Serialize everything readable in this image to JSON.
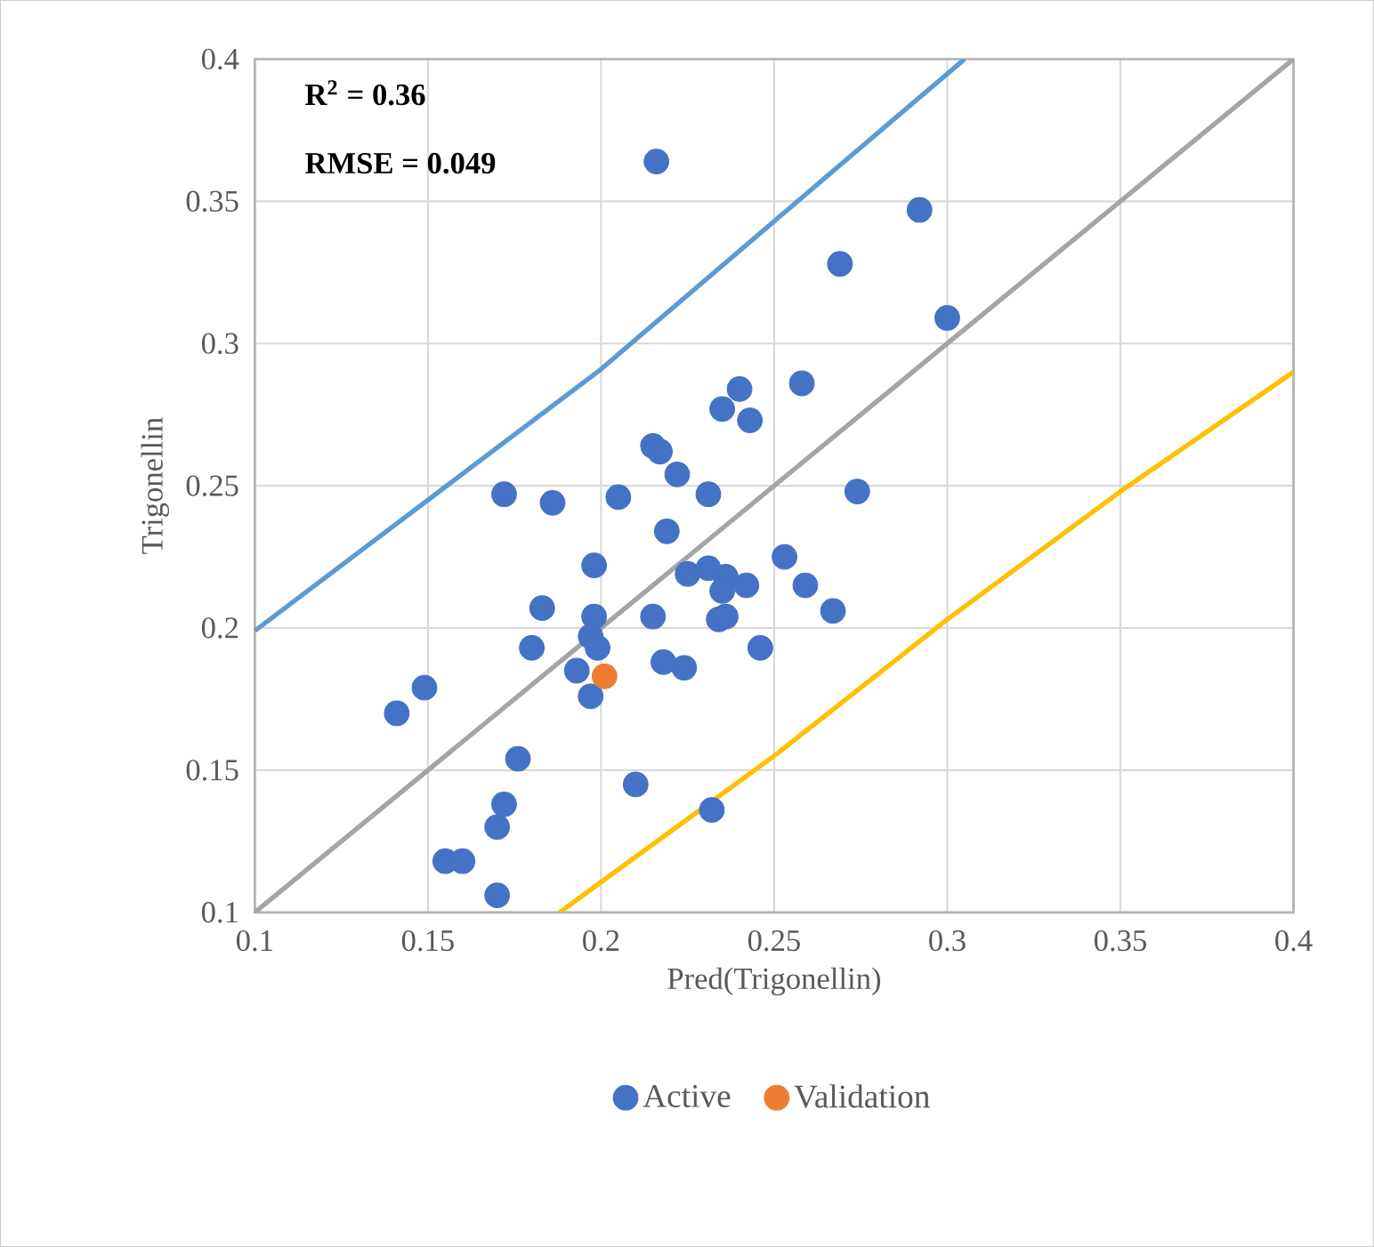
{
  "chart_data": {
    "type": "scatter",
    "xlabel": "Pred(Trigonellin)",
    "ylabel": "Trigonellin",
    "xlim": [
      0.1,
      0.4
    ],
    "ylim": [
      0.1,
      0.4
    ],
    "xticks": [
      0.1,
      0.15,
      0.2,
      0.25,
      0.3,
      0.35,
      0.4
    ],
    "yticks": [
      0.1,
      0.15,
      0.2,
      0.25,
      0.3,
      0.35,
      0.4
    ],
    "grid": true,
    "legend": "bottom",
    "annotations": [
      "R$^{2}$ = 0.36",
      "RMSE = 0.049"
    ],
    "series": [
      {
        "name": "Active",
        "marker": "circle",
        "color": "#4472c4",
        "x": [
          0.216,
          0.292,
          0.269,
          0.3,
          0.258,
          0.24,
          0.235,
          0.243,
          0.215,
          0.217,
          0.222,
          0.172,
          0.186,
          0.205,
          0.231,
          0.274,
          0.219,
          0.198,
          0.253,
          0.225,
          0.231,
          0.236,
          0.242,
          0.259,
          0.235,
          0.183,
          0.215,
          0.198,
          0.234,
          0.236,
          0.267,
          0.197,
          0.199,
          0.18,
          0.246,
          0.193,
          0.218,
          0.224,
          0.197,
          0.149,
          0.141,
          0.176,
          0.21,
          0.172,
          0.232,
          0.17,
          0.155,
          0.16,
          0.17
        ],
        "values": [
          0.364,
          0.347,
          0.328,
          0.309,
          0.286,
          0.284,
          0.277,
          0.273,
          0.264,
          0.262,
          0.254,
          0.247,
          0.244,
          0.246,
          0.247,
          0.248,
          0.234,
          0.222,
          0.225,
          0.219,
          0.221,
          0.218,
          0.215,
          0.215,
          0.213,
          0.207,
          0.204,
          0.204,
          0.203,
          0.204,
          0.206,
          0.197,
          0.193,
          0.193,
          0.193,
          0.185,
          0.188,
          0.186,
          0.176,
          0.179,
          0.17,
          0.154,
          0.145,
          0.138,
          0.136,
          0.13,
          0.118,
          0.118,
          0.106
        ]
      },
      {
        "name": "Validation",
        "marker": "circle",
        "color": "#ed7d31",
        "x": [
          0.201
        ],
        "values": [
          0.183
        ]
      },
      {
        "type": "line",
        "marker": "none",
        "color": "#a5a5a5",
        "x": [
          0.1,
          0.4
        ],
        "values": [
          0.1,
          0.4
        ]
      },
      {
        "type": "line",
        "marker": "none",
        "color": "#5b9bd5",
        "x": [
          0.1,
          0.15,
          0.2,
          0.25,
          0.305
        ],
        "values": [
          0.199,
          0.245,
          0.291,
          0.343,
          0.4
        ]
      },
      {
        "type": "line",
        "marker": "none",
        "color": "#ffc000",
        "x": [
          0.188,
          0.25,
          0.3,
          0.35,
          0.4
        ],
        "values": [
          0.1,
          0.155,
          0.203,
          0.248,
          0.29
        ]
      }
    ]
  }
}
